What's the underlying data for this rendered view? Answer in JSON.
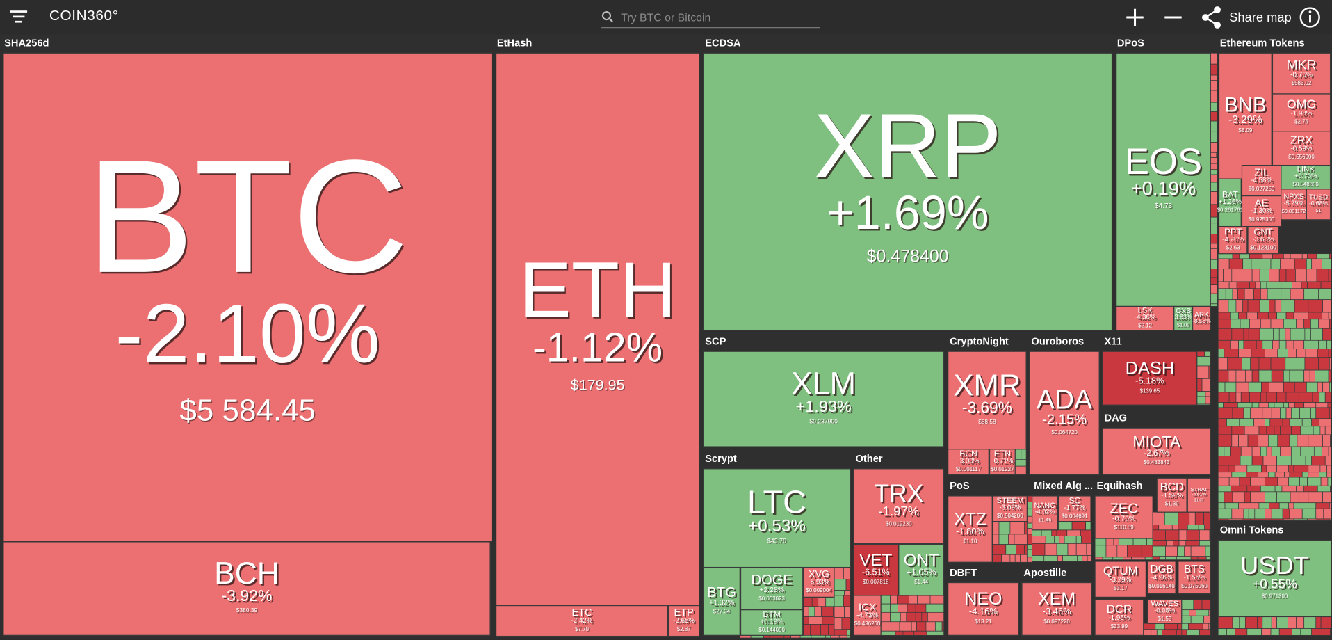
{
  "header": {
    "logo": "COIN360°",
    "search_placeholder": "Try BTC or Bitcoin",
    "share": "Share map"
  },
  "groups": [
    {
      "name": "SHA256d",
      "tiles": [
        {
          "symbol": "BTC",
          "change": "-2.10%",
          "price": "$5 584.45"
        },
        {
          "symbol": "BCH",
          "change": "-3.92%",
          "price": "$380.39"
        }
      ]
    },
    {
      "name": "EtHash",
      "tiles": [
        {
          "symbol": "ETH",
          "change": "-1.12%",
          "price": "$179.95"
        },
        {
          "symbol": "ETC",
          "change": "-2.42%",
          "price": "$7.70"
        },
        {
          "symbol": "ETP",
          "change": "-2.65%",
          "price": "$2.87"
        }
      ]
    },
    {
      "name": "ECDSA",
      "tiles": [
        {
          "symbol": "XRP",
          "change": "+1.69%",
          "price": "$0.478400"
        }
      ]
    },
    {
      "name": "DPoS",
      "tiles": [
        {
          "symbol": "EOS",
          "change": "+0.19%",
          "price": "$4.73"
        },
        {
          "symbol": "LSK",
          "change": "-4.36%",
          "price": "$2.12"
        },
        {
          "symbol": "GXS",
          "change": "3.83%",
          "price": "$1.09"
        },
        {
          "symbol": "ARK",
          "change": "-8.58%"
        }
      ]
    },
    {
      "name": "Ethereum Tokens",
      "tiles": [
        {
          "symbol": "BNB",
          "change": "-3.29%",
          "price": "$8.09"
        },
        {
          "symbol": "MKR",
          "change": "-0.75%",
          "price": "$583.02"
        },
        {
          "symbol": "OMG",
          "change": "-1.98%",
          "price": "$2.76"
        },
        {
          "symbol": "ZRX",
          "change": "-0.59%",
          "price": "$0.556900"
        },
        {
          "symbol": "LINK",
          "change": "+0.70%",
          "price": "$0.548800"
        },
        {
          "symbol": "BAT",
          "change": "+1.26%",
          "price": "$0.261761"
        },
        {
          "symbol": "ZIL",
          "change": "-4.58%",
          "price": "$0.027250"
        },
        {
          "symbol": "AE",
          "change": "-1.30%",
          "price": "$0.925300"
        },
        {
          "symbol": "NPXS",
          "change": "-5.29%",
          "price": "$0.001172"
        },
        {
          "symbol": "TUSD",
          "change": "-0.68%",
          "price": "$1"
        },
        {
          "symbol": "PPT",
          "change": "-4.20%",
          "price": "$2.63"
        },
        {
          "symbol": "GNT",
          "change": "-3.68%",
          "price": "$0.128100"
        }
      ]
    },
    {
      "name": "SCP",
      "tiles": [
        {
          "symbol": "XLM",
          "change": "+1.93%",
          "price": "$0.237900"
        }
      ]
    },
    {
      "name": "CryptoNight",
      "tiles": [
        {
          "symbol": "XMR",
          "change": "-3.69%",
          "price": "$88.58"
        },
        {
          "symbol": "BCN",
          "change": "-3.00%",
          "price": "$0.001117"
        },
        {
          "symbol": "ETN",
          "change": "-0.71%",
          "price": "$0.01227"
        }
      ]
    },
    {
      "name": "Ouroboros",
      "tiles": [
        {
          "symbol": "ADA",
          "change": "-2.15%",
          "price": "$0.064720"
        }
      ]
    },
    {
      "name": "X11",
      "tiles": [
        {
          "symbol": "DASH",
          "change": "-5.18%",
          "price": "$139.65"
        }
      ]
    },
    {
      "name": "DAG",
      "tiles": [
        {
          "symbol": "MIOTA",
          "change": "-2.67%",
          "price": "$0.483843"
        }
      ]
    },
    {
      "name": "Scrypt",
      "tiles": [
        {
          "symbol": "LTC",
          "change": "+0.53%",
          "price": "$43.70"
        },
        {
          "symbol": "BTG",
          "change": "+1.32%",
          "price": "$27.34"
        },
        {
          "symbol": "DOGE",
          "change": "+2.28%",
          "price": "$0.003023"
        },
        {
          "symbol": "BTM",
          "change": "+0.19%",
          "price": "$0.144000"
        },
        {
          "symbol": "XVG",
          "change": "-5.93%",
          "price": "$0.009004"
        }
      ]
    },
    {
      "name": "Other",
      "tiles": [
        {
          "symbol": "TRX",
          "change": "-1.97%",
          "price": "$0.019230"
        },
        {
          "symbol": "VET",
          "change": "-6.51%",
          "price": "$0.007818"
        },
        {
          "symbol": "ONT",
          "change": "+1.05%",
          "price": "$1.44"
        },
        {
          "symbol": "ICX",
          "change": "-4.73%",
          "price": "$0.436200"
        }
      ]
    },
    {
      "name": "PoS",
      "tiles": [
        {
          "symbol": "XTZ",
          "change": "-1.80%",
          "price": "$1.10"
        },
        {
          "symbol": "STEEM",
          "change": "-3.09%",
          "price": "$0.504200"
        }
      ]
    },
    {
      "name": "Mixed Alg ...",
      "tiles": [
        {
          "symbol": "NANO",
          "change": "-4.02%",
          "price": "$1.46"
        },
        {
          "symbol": "SC",
          "change": "-1.77%",
          "price": "$0.004691"
        }
      ]
    },
    {
      "name": "Equihash",
      "tiles": [
        {
          "symbol": "ZEC",
          "change": "-0.76%",
          "price": "$110.89"
        }
      ]
    },
    {
      "tiles": [
        {
          "symbol": "BCD",
          "change": "-1.59%",
          "price": "$1.39"
        },
        {
          "symbol": "STRAT",
          "change": "-4.61%",
          "price": "$1.07"
        }
      ]
    },
    {
      "name": "DBFT",
      "tiles": [
        {
          "symbol": "NEO",
          "change": "-4.16%",
          "price": "$13.21"
        }
      ]
    },
    {
      "name": "Apostille",
      "tiles": [
        {
          "symbol": "XEM",
          "change": "-3.46%",
          "price": "$0.097220"
        }
      ]
    },
    {
      "tiles": [
        {
          "symbol": "QTUM",
          "change": "-3.29%",
          "price": "$3.17"
        },
        {
          "symbol": "DGB",
          "change": "-4.96%",
          "price": "$0.016140"
        },
        {
          "symbol": "BTS",
          "change": "-1.55%",
          "price": "$0.075060"
        },
        {
          "symbol": "DCR",
          "change": "-1.95%",
          "price": "$33.99"
        },
        {
          "symbol": "WAVES",
          "change": "-0.05%",
          "price": "$1.53"
        }
      ]
    },
    {
      "name": "Omni Tokens",
      "tiles": [
        {
          "symbol": "USDT",
          "change": "+0.55%",
          "price": "$0.971300"
        }
      ]
    }
  ]
}
